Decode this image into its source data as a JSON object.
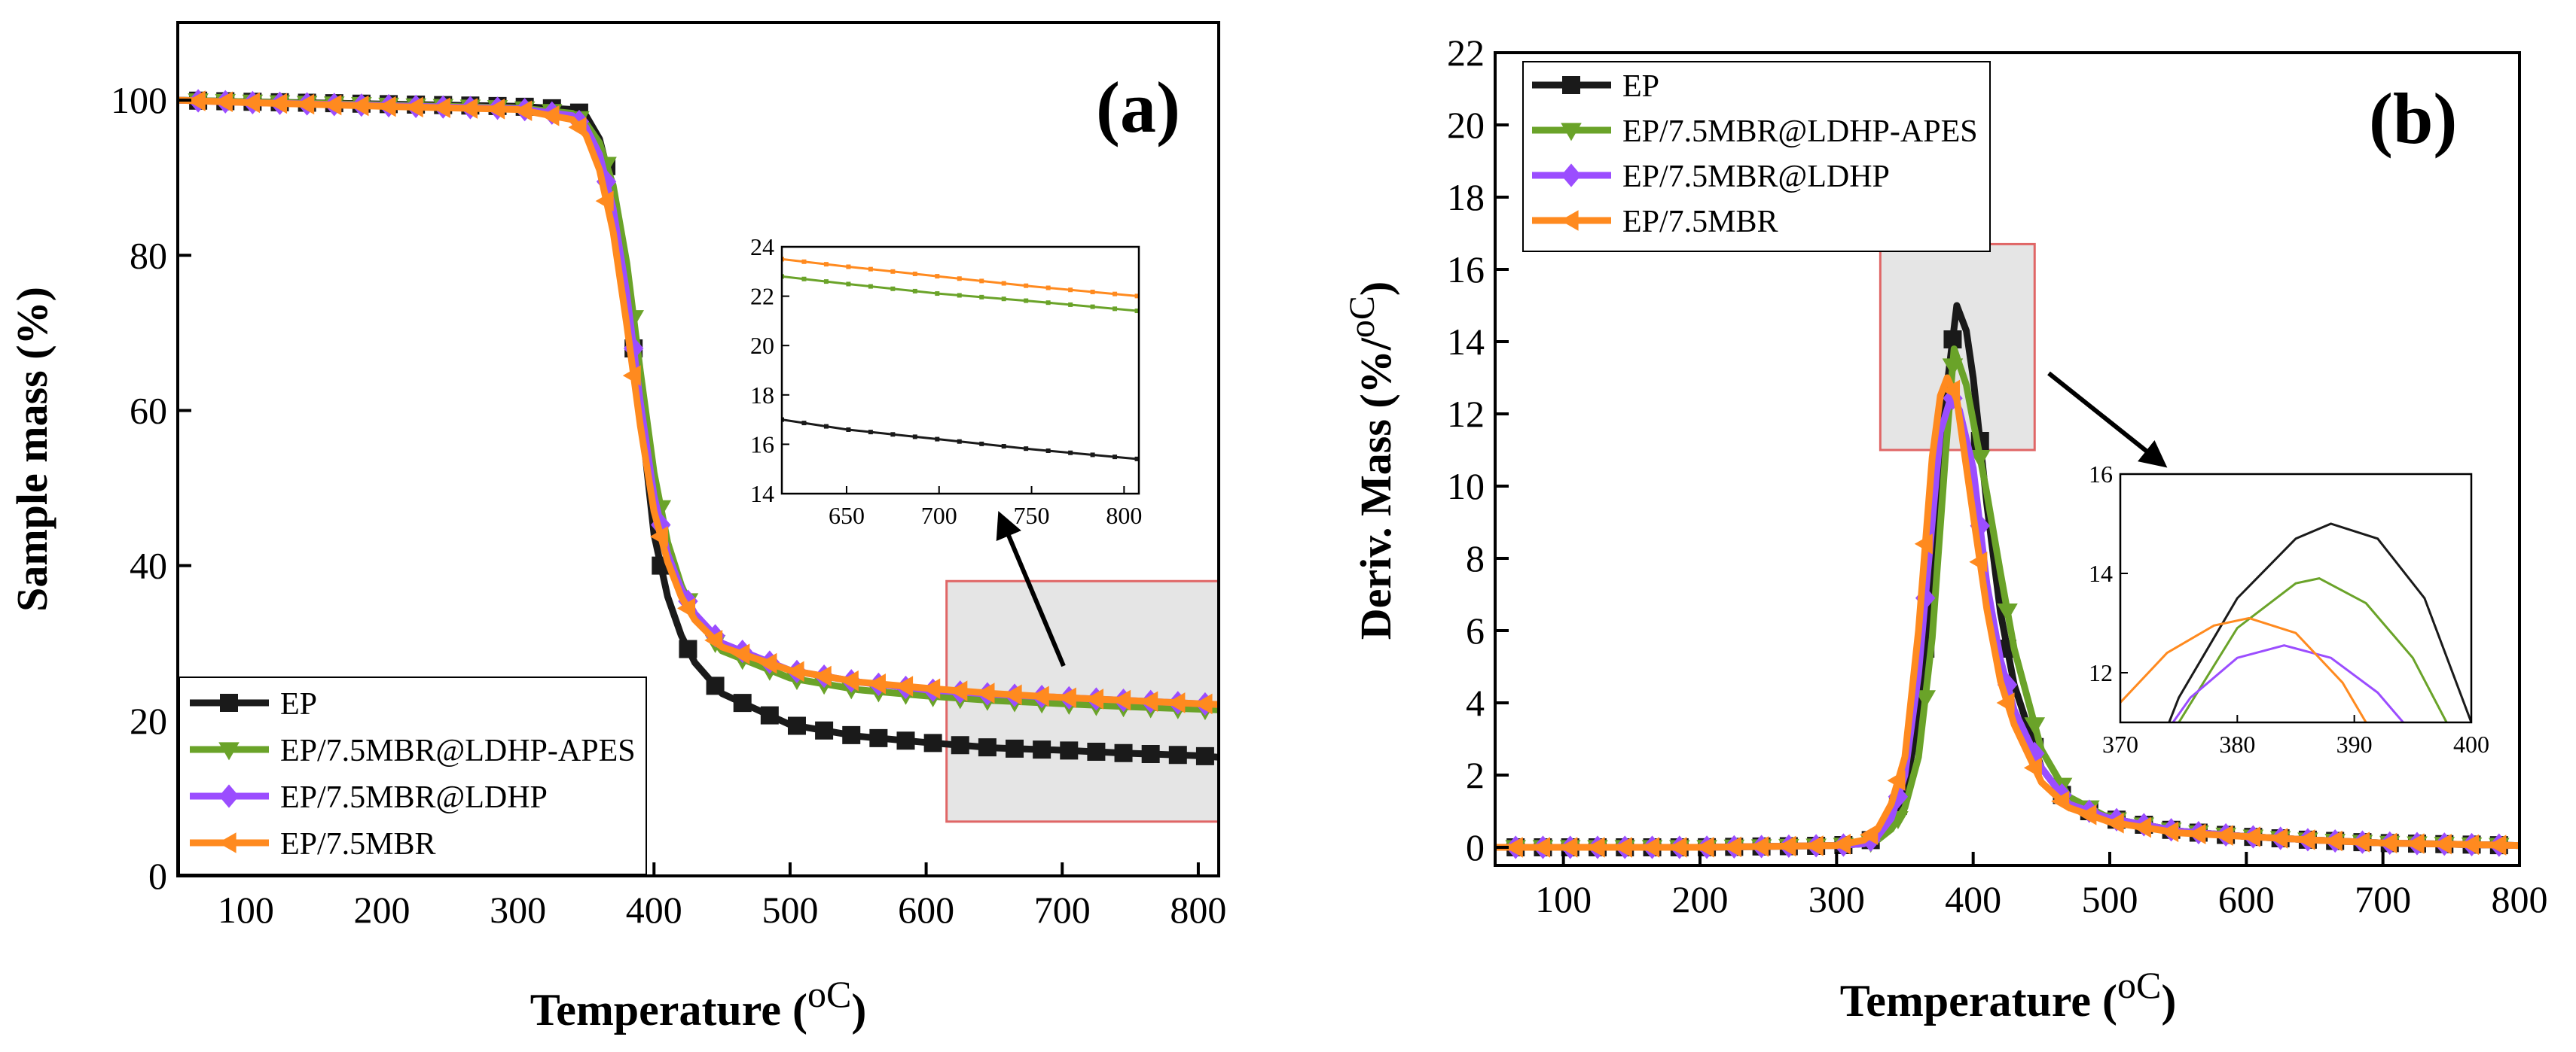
{
  "colors": {
    "EP": "#1a1a1a",
    "EP/7.5MBR@LDHP-APES": "#6aa329",
    "EP/7.5MBR@LDHP": "#9b4dff",
    "EP/7.5MBR": "#ff8a1f",
    "highlight_border": "#e06666",
    "highlight_fill": "#e5e5e5"
  },
  "chart_data": [
    {
      "type": "line",
      "panel_label": "(a)",
      "xlabel": "Temperature (",
      "xlabel_unit": "oC",
      "xlabel_close": ")",
      "ylabel": "Sample mass (%)",
      "xlim": [
        50,
        815
      ],
      "ylim": [
        0,
        110
      ],
      "xticks": [
        100,
        200,
        300,
        400,
        500,
        600,
        700,
        800
      ],
      "yticks": [
        0,
        20,
        40,
        60,
        80,
        100
      ],
      "legend_position": "bottom-left",
      "series": [
        {
          "name": "EP",
          "marker": "square",
          "x": [
            50,
            100,
            200,
            300,
            340,
            350,
            360,
            370,
            380,
            390,
            400,
            410,
            420,
            430,
            450,
            500,
            550,
            600,
            650,
            700,
            750,
            800,
            815
          ],
          "y": [
            100,
            99.8,
            99.5,
            99.2,
            98.8,
            98,
            95,
            88,
            76,
            60,
            44,
            36,
            31,
            27.5,
            23.5,
            19.5,
            18,
            17.2,
            16.5,
            16.2,
            15.8,
            15.5,
            15.3
          ]
        },
        {
          "name": "EP/7.5MBR@LDHP-APES",
          "marker": "triangle-down",
          "x": [
            50,
            100,
            200,
            300,
            340,
            350,
            360,
            370,
            380,
            390,
            400,
            410,
            420,
            430,
            450,
            500,
            550,
            600,
            650,
            700,
            750,
            800,
            815
          ],
          "y": [
            100,
            99.8,
            99.4,
            99,
            98.3,
            97,
            94.5,
            89,
            79,
            65,
            52,
            43,
            37.5,
            33.5,
            29,
            25.5,
            24,
            23.2,
            22.6,
            22.2,
            21.8,
            21.5,
            21.4
          ]
        },
        {
          "name": "EP/7.5MBR@LDHP",
          "marker": "diamond",
          "x": [
            50,
            100,
            200,
            300,
            340,
            350,
            360,
            370,
            380,
            390,
            400,
            410,
            420,
            430,
            450,
            500,
            550,
            600,
            650,
            700,
            750,
            800,
            815
          ],
          "y": [
            100,
            99.7,
            99.3,
            98.9,
            98,
            96.5,
            93,
            86,
            75,
            61,
            49,
            41.5,
            37,
            33.8,
            30,
            26.5,
            25,
            24,
            23.4,
            23,
            22.6,
            22.2,
            22.1
          ]
        },
        {
          "name": "EP/7.5MBR",
          "marker": "triangle-left",
          "x": [
            50,
            100,
            200,
            300,
            340,
            350,
            360,
            370,
            380,
            390,
            400,
            410,
            420,
            430,
            450,
            500,
            550,
            600,
            650,
            700,
            750,
            800,
            815
          ],
          "y": [
            100,
            99.7,
            99.2,
            98.8,
            97.5,
            95.5,
            91,
            83,
            71,
            58,
            47,
            40.5,
            36,
            33,
            29.5,
            26.5,
            25,
            24.2,
            23.5,
            23,
            22.6,
            22.2,
            22.1
          ]
        }
      ],
      "highlight_box": {
        "x": [
          615,
          815
        ],
        "y": [
          7,
          38
        ]
      },
      "inset": {
        "xlim": [
          615,
          808
        ],
        "ylim": [
          14,
          24
        ],
        "xticks": [
          650,
          700,
          750,
          800
        ],
        "yticks": [
          14,
          16,
          18,
          20,
          22,
          24
        ],
        "series": [
          {
            "name": "EP",
            "x": [
              615,
              650,
              700,
              750,
              808
            ],
            "y": [
              17.0,
              16.6,
              16.2,
              15.8,
              15.4
            ]
          },
          {
            "name": "EP/7.5MBR@LDHP-APES",
            "x": [
              615,
              650,
              700,
              750,
              808
            ],
            "y": [
              22.8,
              22.5,
              22.1,
              21.8,
              21.4
            ]
          },
          {
            "name": "EP/7.5MBR",
            "x": [
              615,
              650,
              700,
              750,
              808
            ],
            "y": [
              23.5,
              23.2,
              22.8,
              22.4,
              22.0
            ]
          }
        ]
      }
    },
    {
      "type": "line",
      "panel_label": "(b)",
      "xlabel": "Temperature (",
      "xlabel_unit": "oC",
      "xlabel_close": ")",
      "ylabel": "Deriv. Mass (%/",
      "ylabel_unit": "oC",
      "ylabel_close": ")",
      "xlim": [
        50,
        800
      ],
      "ylim": [
        -0.5,
        22
      ],
      "xticks": [
        100,
        200,
        300,
        400,
        500,
        600,
        700,
        800
      ],
      "yticks": [
        0,
        2,
        4,
        6,
        8,
        10,
        12,
        14,
        16,
        18,
        20,
        22
      ],
      "legend_position": "top-left",
      "series": [
        {
          "name": "EP",
          "marker": "square",
          "x": [
            50,
            100,
            200,
            300,
            320,
            330,
            340,
            350,
            360,
            370,
            380,
            388,
            395,
            400,
            410,
            420,
            430,
            450,
            470,
            500,
            550,
            600,
            650,
            700,
            800
          ],
          "y": [
            0,
            0,
            0,
            0.05,
            0.1,
            0.3,
            0.7,
            1.6,
            3.5,
            7.5,
            12.5,
            15.0,
            14.3,
            13,
            9.5,
            6.5,
            4.5,
            2.2,
            1.2,
            0.8,
            0.45,
            0.3,
            0.2,
            0.12,
            0.05
          ]
        },
        {
          "name": "EP/7.5MBR@LDHP-APES",
          "marker": "triangle-down",
          "x": [
            50,
            100,
            200,
            300,
            320,
            330,
            340,
            350,
            360,
            370,
            380,
            386,
            395,
            400,
            410,
            420,
            430,
            450,
            470,
            500,
            550,
            600,
            650,
            700,
            800
          ],
          "y": [
            0,
            0,
            0,
            0.05,
            0.1,
            0.2,
            0.5,
            1.1,
            2.5,
            5.8,
            11,
            13.8,
            12.8,
            11.8,
            9.8,
            7.6,
            5.5,
            2.7,
            1.4,
            0.8,
            0.45,
            0.3,
            0.2,
            0.12,
            0.05
          ]
        },
        {
          "name": "EP/7.5MBR@LDHP",
          "marker": "diamond",
          "x": [
            50,
            100,
            200,
            300,
            320,
            330,
            340,
            350,
            360,
            370,
            376,
            384,
            390,
            400,
            410,
            420,
            430,
            450,
            470,
            500,
            550,
            600,
            650,
            700,
            800
          ],
          "y": [
            0,
            0,
            0,
            0.05,
            0.1,
            0.3,
            0.8,
            2.0,
            4.8,
            9,
            11.5,
            12.5,
            12.1,
            10.5,
            7.3,
            5.2,
            3.8,
            2.2,
            1.2,
            0.8,
            0.45,
            0.3,
            0.2,
            0.12,
            0.05
          ]
        },
        {
          "name": "EP/7.5MBR",
          "marker": "triangle-left",
          "x": [
            50,
            100,
            200,
            300,
            320,
            330,
            340,
            350,
            360,
            370,
            376,
            381,
            388,
            400,
            410,
            420,
            430,
            450,
            470,
            500,
            550,
            600,
            650,
            700,
            800
          ],
          "y": [
            0,
            0,
            0,
            0.05,
            0.2,
            0.5,
            1.2,
            2.5,
            6.0,
            10.8,
            12.5,
            13.0,
            12.4,
            9.2,
            6.6,
            4.6,
            3.4,
            1.8,
            1.1,
            0.7,
            0.4,
            0.3,
            0.2,
            0.12,
            0.05
          ]
        }
      ],
      "highlight_box": {
        "x": [
          332,
          445
        ],
        "y": [
          11,
          16.7
        ]
      },
      "inset": {
        "xlim": [
          370,
          400
        ],
        "ylim": [
          11,
          16
        ],
        "xticks": [
          370,
          380,
          390,
          400
        ],
        "yticks": [
          12,
          14,
          16
        ],
        "series": [
          {
            "name": "EP",
            "x": [
              370,
              375,
              380,
              385,
              388,
              392,
              396,
              400
            ],
            "y": [
              8.5,
              11.5,
              13.5,
              14.7,
              15.0,
              14.7,
              13.5,
              11.0
            ]
          },
          {
            "name": "EP/7.5MBR@LDHP-APES",
            "x": [
              370,
              375,
              380,
              385,
              387,
              391,
              395,
              399
            ],
            "y": [
              8.0,
              11.0,
              12.9,
              13.8,
              13.9,
              13.4,
              12.3,
              10.5
            ]
          },
          {
            "name": "EP/7.5MBR@LDHP",
            "x": [
              370,
              376,
              380,
              384,
              388,
              392,
              396
            ],
            "y": [
              9.5,
              11.5,
              12.3,
              12.55,
              12.3,
              11.6,
              10.5
            ]
          },
          {
            "name": "EP/7.5MBR",
            "x": [
              370,
              374,
              378,
              381,
              385,
              389,
              393
            ],
            "y": [
              11.4,
              12.4,
              12.95,
              13.1,
              12.8,
              11.8,
              10.2
            ]
          }
        ]
      }
    }
  ]
}
